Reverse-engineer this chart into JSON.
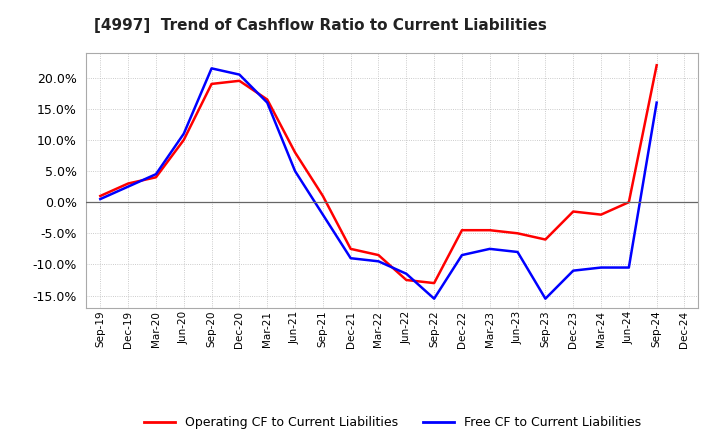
{
  "title": "[4997]  Trend of Cashflow Ratio to Current Liabilities",
  "x_labels": [
    "Sep-19",
    "Dec-19",
    "Mar-20",
    "Jun-20",
    "Sep-20",
    "Dec-20",
    "Mar-21",
    "Jun-21",
    "Sep-21",
    "Dec-21",
    "Mar-22",
    "Jun-22",
    "Sep-22",
    "Dec-22",
    "Mar-23",
    "Jun-23",
    "Sep-23",
    "Dec-23",
    "Mar-24",
    "Jun-24",
    "Sep-24",
    "Dec-24"
  ],
  "operating_cf": [
    1.0,
    3.0,
    4.0,
    10.0,
    19.0,
    19.5,
    16.5,
    8.0,
    1.0,
    -7.5,
    -8.5,
    -12.5,
    -13.0,
    -4.5,
    -4.5,
    -5.0,
    -6.0,
    -1.5,
    -2.0,
    0.0,
    22.0,
    null
  ],
  "free_cf": [
    0.5,
    2.5,
    4.5,
    11.0,
    21.5,
    20.5,
    16.0,
    5.0,
    -2.0,
    -9.0,
    -9.5,
    -11.5,
    -15.5,
    -8.5,
    -7.5,
    -8.0,
    -15.5,
    -11.0,
    -10.5,
    -10.5,
    16.0,
    null
  ],
  "operating_color": "#ff0000",
  "free_color": "#0000ff",
  "ylim": [
    -17,
    24
  ],
  "yticks": [
    -15,
    -10,
    -5,
    0,
    5,
    10,
    15,
    20
  ],
  "legend_labels": [
    "Operating CF to Current Liabilities",
    "Free CF to Current Liabilities"
  ],
  "background_color": "#ffffff",
  "grid_color": "#bbbbbb"
}
